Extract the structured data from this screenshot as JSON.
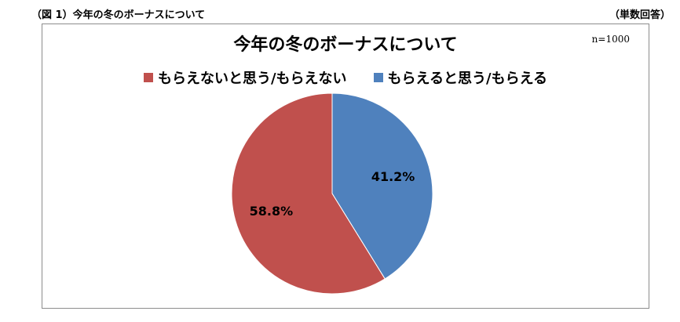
{
  "header": {
    "caption": "（図 1）今年の冬のボーナスについて",
    "unit_note": "（単数回答）"
  },
  "chart_data": {
    "type": "pie",
    "title": "今年の冬のボーナスについて",
    "sample_note": "n=1000",
    "legend_position": "top",
    "slices": [
      {
        "label": "もらえないと思う/もらえない",
        "value": 58.8,
        "value_label": "58.8%",
        "color": "#c0504d"
      },
      {
        "label": "もらえると思う/もらえる",
        "value": 41.2,
        "value_label": "41.2%",
        "color": "#4f81bd"
      }
    ]
  }
}
